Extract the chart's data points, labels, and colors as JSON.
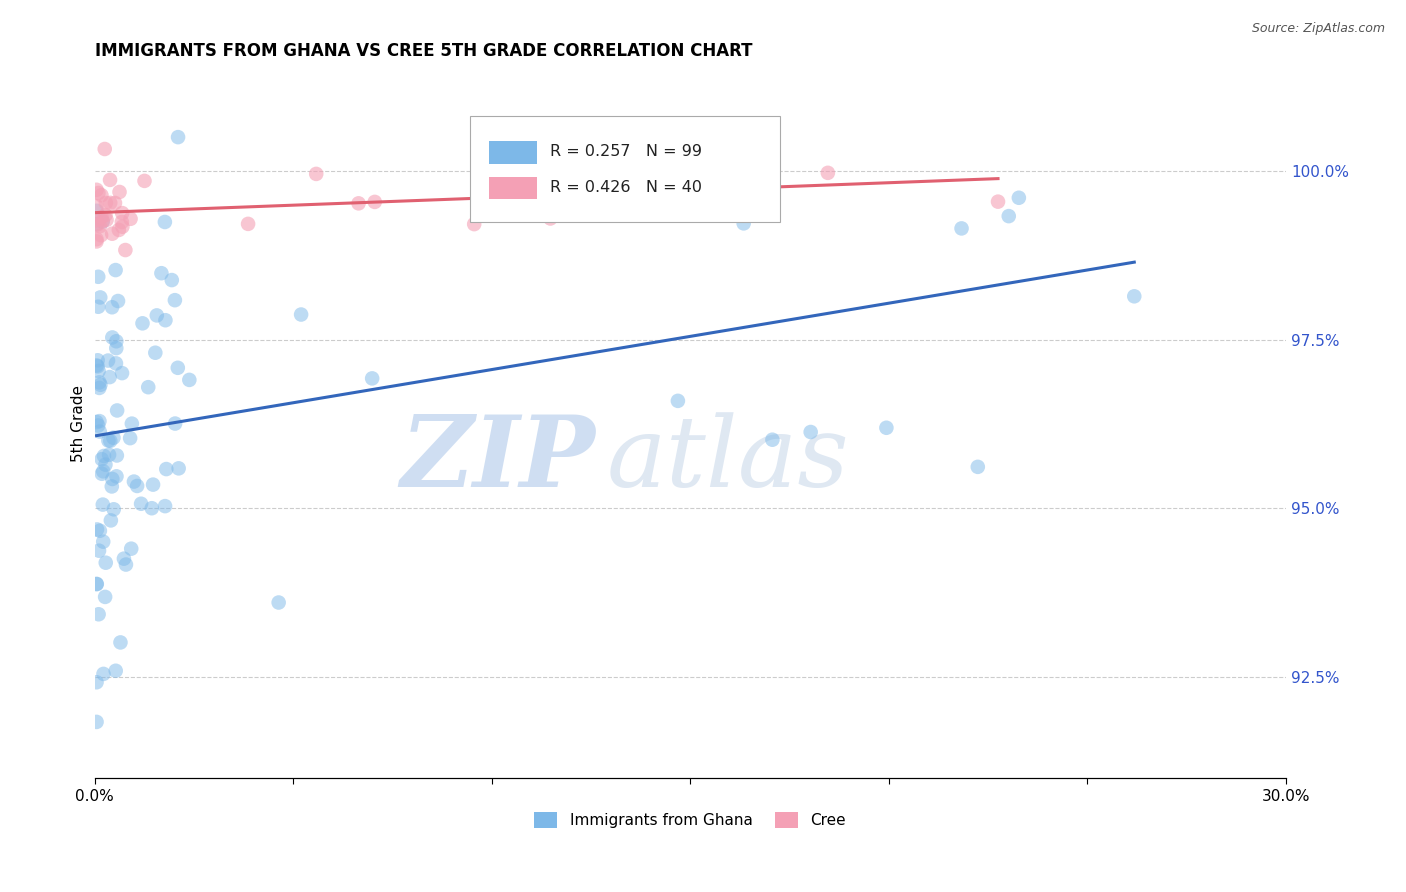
{
  "title": "IMMIGRANTS FROM GHANA VS CREE 5TH GRADE CORRELATION CHART",
  "source": "Source: ZipAtlas.com",
  "ylabel_left": "5th Grade",
  "right_yticks": [
    100.0,
    97.5,
    95.0,
    92.5
  ],
  "right_ytick_labels": [
    "100.0%",
    "97.5%",
    "95.0%",
    "92.5%"
  ],
  "xlim": [
    0.0,
    30.0
  ],
  "ylim": [
    91.0,
    101.5
  ],
  "ghana_R": 0.257,
  "ghana_N": 99,
  "cree_R": 0.426,
  "cree_N": 40,
  "ghana_color": "#7db8e8",
  "cree_color": "#f4a0b5",
  "ghana_line_color": "#3366bb",
  "cree_line_color": "#e06070",
  "legend_label_ghana": "Immigrants from Ghana",
  "legend_label_cree": "Cree",
  "watermark_zip": "ZIP",
  "watermark_atlas": "atlas",
  "watermark_color_zip": "#c5d8f0",
  "watermark_color_atlas": "#c5d8f0",
  "ghana_seed": 42,
  "cree_seed": 77
}
